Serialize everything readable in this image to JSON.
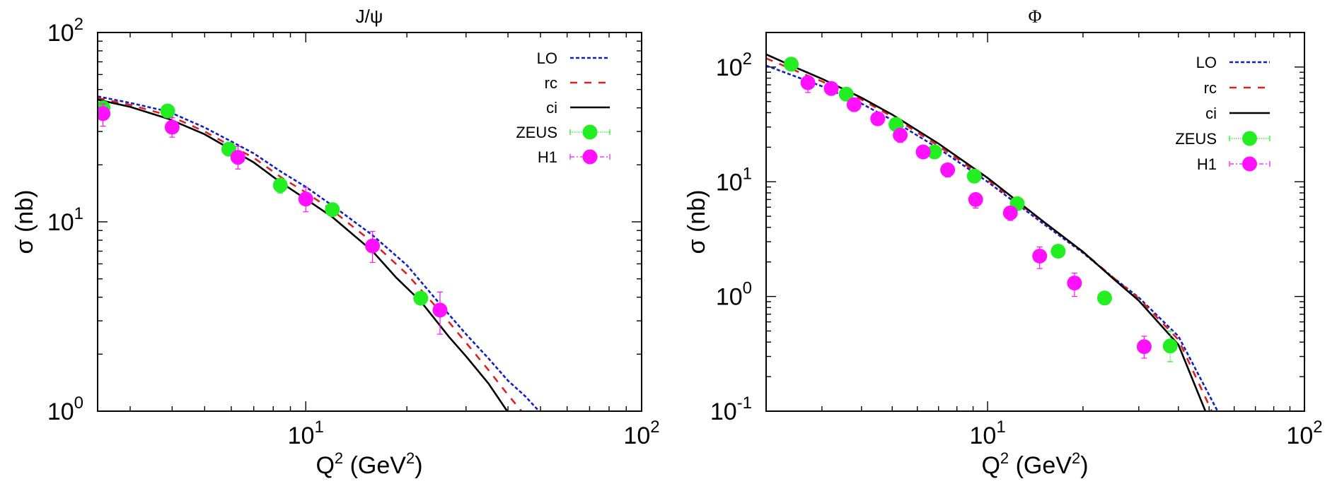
{
  "chart_data": [
    {
      "type": "line",
      "title": "J/ψ",
      "xlabel": "Q² (GeV²)",
      "ylabel": "σ (nb)",
      "xscale": "log",
      "yscale": "log",
      "xlim": [
        2.4,
        100
      ],
      "ylim": [
        1,
        100
      ],
      "xticks": [
        {
          "base": "10",
          "exp": "1",
          "value": 10
        },
        {
          "base": "10",
          "exp": "2",
          "value": 100
        }
      ],
      "yticks": [
        {
          "base": "10",
          "exp": "0",
          "value": 1
        },
        {
          "base": "10",
          "exp": "1",
          "value": 10
        },
        {
          "base": "10",
          "exp": "2",
          "value": 100
        }
      ],
      "legend_position": "top-right",
      "series": [
        {
          "name": "LO",
          "kind": "line",
          "style": "dotted",
          "color": "#1020c0",
          "x": [
            2.4,
            3.0,
            3.9,
            5.0,
            5.9,
            7.0,
            8.4,
            10,
            12,
            15.8,
            20,
            25.7,
            30,
            35,
            40,
            45,
            49.5
          ],
          "y": [
            46.0,
            42.5,
            38.2,
            31.5,
            27.0,
            23.0,
            18.5,
            15.3,
            12.2,
            8.5,
            5.9,
            3.5,
            2.55,
            1.9,
            1.45,
            1.2,
            1.0
          ]
        },
        {
          "name": "rc",
          "kind": "line",
          "style": "dashed",
          "color": "#e02020",
          "x": [
            2.4,
            3.0,
            3.9,
            5.0,
            5.9,
            7.0,
            8.4,
            10,
            12,
            15.8,
            20,
            25,
            30,
            35,
            40,
            43.9
          ],
          "y": [
            45.0,
            41.5,
            36.5,
            30.0,
            25.5,
            21.8,
            17.3,
            14.3,
            11.5,
            7.8,
            5.3,
            3.4,
            2.3,
            1.65,
            1.22,
            1.0
          ]
        },
        {
          "name": "ci",
          "kind": "line",
          "style": "solid",
          "color": "#000000",
          "x": [
            2.4,
            3.0,
            3.9,
            5.0,
            5.9,
            7.0,
            8.4,
            10,
            12,
            15.8,
            18.6,
            22,
            26.7,
            30,
            35,
            39.8
          ],
          "y": [
            44.2,
            40.5,
            35.0,
            29.0,
            24.5,
            20.6,
            16.2,
            13.2,
            10.6,
            7.0,
            5.07,
            3.8,
            2.47,
            1.95,
            1.4,
            1.0
          ]
        },
        {
          "name": "ZEUS",
          "kind": "points",
          "color": "#22ee22",
          "x": [
            2.49,
            3.88,
            5.9,
            8.4,
            12.0,
            22.0
          ],
          "y": [
            40.0,
            38.5,
            24.2,
            15.6,
            11.6,
            3.95
          ],
          "yerr_low": [
            38.0,
            36.0,
            22.8,
            14.2,
            11.0,
            3.7
          ],
          "yerr_high": [
            42.0,
            40.5,
            25.5,
            17.0,
            12.3,
            4.2
          ]
        },
        {
          "name": "H1",
          "kind": "points",
          "color": "#ff10ff",
          "x": [
            2.49,
            4.0,
            6.28,
            10.0,
            15.8,
            25.1
          ],
          "y": [
            37.3,
            31.6,
            21.9,
            13.2,
            7.46,
            3.42
          ],
          "yerr_low": [
            32.0,
            28.0,
            19.0,
            11.3,
            6.1,
            2.55
          ],
          "yerr_high": [
            42.0,
            35.5,
            25.0,
            15.2,
            8.9,
            4.26
          ]
        }
      ]
    },
    {
      "type": "line",
      "title": "Φ",
      "xlabel": "Q² (GeV²)",
      "ylabel": "σ (nb)",
      "xscale": "log",
      "yscale": "log",
      "xlim": [
        2,
        100
      ],
      "ylim": [
        0.1,
        200
      ],
      "xticks": [
        {
          "base": "10",
          "exp": "1",
          "value": 10
        },
        {
          "base": "10",
          "exp": "2",
          "value": 100
        }
      ],
      "yticks": [
        {
          "base": "10",
          "exp": "-1",
          "value": 0.1
        },
        {
          "base": "10",
          "exp": "0",
          "value": 1
        },
        {
          "base": "10",
          "exp": "1",
          "value": 10
        },
        {
          "base": "10",
          "exp": "2",
          "value": 100
        }
      ],
      "legend_position": "top-right",
      "series": [
        {
          "name": "LO",
          "kind": "line",
          "style": "dotted",
          "color": "#1020c0",
          "x": [
            2,
            2.5,
            3,
            4,
            5,
            7,
            10,
            15,
            20,
            25,
            30,
            40,
            53.2
          ],
          "y": [
            103,
            82,
            68,
            48,
            34.5,
            19.5,
            10.0,
            4.3,
            2.4,
            1.45,
            0.98,
            0.45,
            0.1
          ]
        },
        {
          "name": "rc",
          "kind": "line",
          "style": "dashed",
          "color": "#e02020",
          "x": [
            2,
            2.5,
            3,
            4,
            5,
            7,
            10,
            15,
            20,
            25,
            30,
            40,
            51
          ],
          "y": [
            119,
            92,
            75,
            52,
            37,
            20.5,
            10.4,
            4.45,
            2.45,
            1.45,
            0.96,
            0.42,
            0.1
          ]
        },
        {
          "name": "ci",
          "kind": "line",
          "style": "solid",
          "color": "#000000",
          "x": [
            2,
            2.5,
            3,
            4,
            5,
            7,
            10,
            15,
            20,
            25,
            30,
            40,
            48.7
          ],
          "y": [
            129,
            98,
            79,
            54,
            38.5,
            21.5,
            10.8,
            4.5,
            2.45,
            1.42,
            0.92,
            0.38,
            0.1
          ]
        },
        {
          "name": "ZEUS",
          "kind": "points",
          "color": "#22ee22",
          "x": [
            2.4,
            3.58,
            5.14,
            6.8,
            9.08,
            12.4,
            16.7,
            23.4,
            37.7
          ],
          "y": [
            106,
            58,
            31.6,
            18.2,
            11.2,
            6.44,
            2.48,
            0.97,
            0.37
          ],
          "yerr_low": [
            100,
            54,
            29.5,
            16.8,
            10.4,
            5.9,
            2.2,
            0.85,
            0.27
          ],
          "yerr_high": [
            112,
            62,
            33.5,
            19.8,
            12.0,
            7.0,
            2.75,
            1.1,
            0.5
          ]
        },
        {
          "name": "H1",
          "kind": "points",
          "color": "#ff10ff",
          "x": [
            2.71,
            3.21,
            3.79,
            4.5,
            5.3,
            6.26,
            7.48,
            9.17,
            11.8,
            14.6,
            18.8,
            31.2
          ],
          "y": [
            73,
            65,
            47,
            35.4,
            25.5,
            18.2,
            12.7,
            7.0,
            5.35,
            2.25,
            1.31,
            0.365
          ],
          "yerr_low": [
            60,
            57,
            41,
            31,
            22,
            16.3,
            11.0,
            5.9,
            4.6,
            1.75,
            1.0,
            0.29
          ],
          "yerr_high": [
            80,
            72,
            52,
            39,
            28,
            20,
            14.2,
            7.9,
            6.0,
            2.7,
            1.6,
            0.45
          ]
        }
      ]
    }
  ]
}
